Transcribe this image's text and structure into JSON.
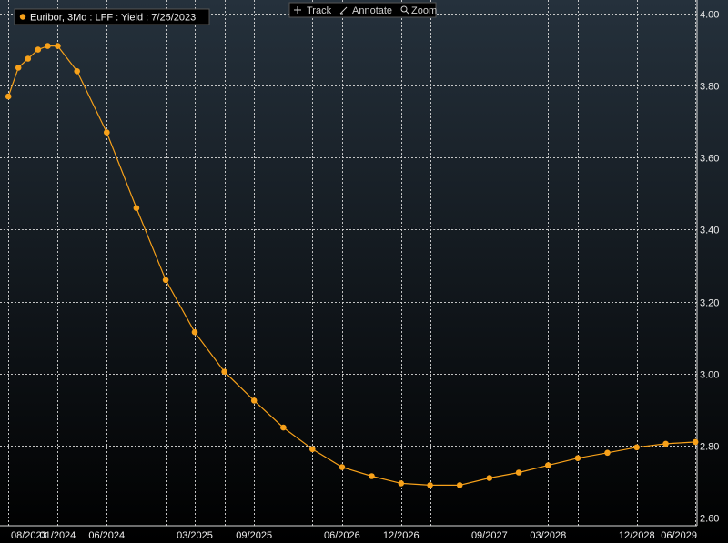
{
  "toolbar": {
    "track_label": "Track",
    "annotate_label": "Annotate",
    "zoom_label": "Zoom",
    "track_icon": "crosshair-icon",
    "annotate_icon": "pencil-icon",
    "zoom_icon": "magnifier-icon"
  },
  "colors": {
    "background_top": "#25313c",
    "background_bottom": "#000000",
    "series": "#f7a11a",
    "grid": "#d8d8d8",
    "text": "#f0f0f0"
  },
  "chart_data": {
    "type": "line",
    "title": "",
    "xlabel": "",
    "ylabel": "",
    "legend_position": "top-left",
    "grid": true,
    "y_axis_side": "right",
    "ylim": [
      2.6,
      4.0
    ],
    "xlim": [
      "2023-07-20",
      "2029-06-20"
    ],
    "y_ticks": [
      "4.00",
      "3.80",
      "3.60",
      "3.40",
      "3.20",
      "3.00",
      "2.80",
      "2.60"
    ],
    "x_ticks": [
      {
        "label": "08/2023",
        "date": "2023-08-15"
      },
      {
        "label": "01/2024",
        "date": "2024-01-15"
      },
      {
        "label": "06/2024",
        "date": "2024-06-15"
      },
      {
        "label": "03/2025",
        "date": "2025-03-15"
      },
      {
        "label": "09/2025",
        "date": "2025-09-15"
      },
      {
        "label": "06/2026",
        "date": "2026-06-15"
      },
      {
        "label": "12/2026",
        "date": "2026-12-15"
      },
      {
        "label": "09/2027",
        "date": "2027-09-15"
      },
      {
        "label": "03/2028",
        "date": "2028-03-15"
      },
      {
        "label": "12/2028",
        "date": "2028-12-15"
      },
      {
        "label": "06/2029",
        "date": "2029-06-15"
      }
    ],
    "x_gridlines": [
      "2023-08-15",
      "2024-01-15",
      "2024-06-15",
      "2024-12-15",
      "2025-03-15",
      "2025-06-15",
      "2025-09-15",
      "2026-03-15",
      "2026-06-15",
      "2026-12-15",
      "2027-03-15",
      "2027-09-15",
      "2028-03-15",
      "2028-06-15",
      "2028-12-15",
      "2029-06-15"
    ],
    "series": [
      {
        "name": "Euribor, 3Mo : LFF : Yield : 7/25/2023",
        "color": "#f7a11a",
        "points": [
          {
            "x": "2023-08-15",
            "y": 3.77
          },
          {
            "x": "2023-09-15",
            "y": 3.85
          },
          {
            "x": "2023-10-15",
            "y": 3.875
          },
          {
            "x": "2023-11-15",
            "y": 3.9
          },
          {
            "x": "2023-12-15",
            "y": 3.91
          },
          {
            "x": "2024-01-15",
            "y": 3.91
          },
          {
            "x": "2024-03-15",
            "y": 3.84
          },
          {
            "x": "2024-06-15",
            "y": 3.67
          },
          {
            "x": "2024-09-15",
            "y": 3.46
          },
          {
            "x": "2024-12-15",
            "y": 3.26
          },
          {
            "x": "2025-03-15",
            "y": 3.115
          },
          {
            "x": "2025-06-15",
            "y": 3.005
          },
          {
            "x": "2025-09-15",
            "y": 2.925
          },
          {
            "x": "2025-12-15",
            "y": 2.85
          },
          {
            "x": "2026-03-15",
            "y": 2.79
          },
          {
            "x": "2026-06-15",
            "y": 2.74
          },
          {
            "x": "2026-09-15",
            "y": 2.715
          },
          {
            "x": "2026-12-15",
            "y": 2.695
          },
          {
            "x": "2027-03-15",
            "y": 2.69
          },
          {
            "x": "2027-06-15",
            "y": 2.69
          },
          {
            "x": "2027-09-15",
            "y": 2.71
          },
          {
            "x": "2027-12-15",
            "y": 2.725
          },
          {
            "x": "2028-03-15",
            "y": 2.745
          },
          {
            "x": "2028-06-15",
            "y": 2.765
          },
          {
            "x": "2028-09-15",
            "y": 2.78
          },
          {
            "x": "2028-12-15",
            "y": 2.795
          },
          {
            "x": "2029-03-15",
            "y": 2.805
          },
          {
            "x": "2029-06-15",
            "y": 2.81
          }
        ]
      }
    ]
  }
}
